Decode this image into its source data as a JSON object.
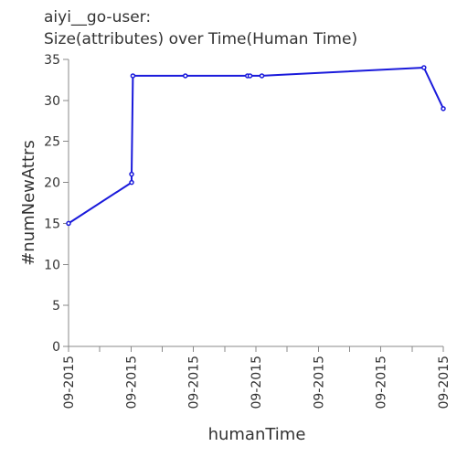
{
  "title": {
    "line1": "aiyi__go-user:",
    "line2": "Size(attributes) over Time(Human Time)"
  },
  "colors": {
    "series": "#1a1adb",
    "axis": "#888888",
    "text": "#333333"
  },
  "chart_data": {
    "type": "line",
    "title": "aiyi__go-user: Size(attributes) over Time(Human Time)",
    "xlabel": "humanTime",
    "ylabel": "#numNewAttrs",
    "ylim": [
      0,
      35
    ],
    "yticks": [
      0,
      5,
      10,
      15,
      20,
      25,
      30,
      35
    ],
    "xticks": [
      "09-2015",
      "09-2015",
      "09-2015",
      "09-2015",
      "09-2015",
      "09-2015",
      "09-2015",
      "09-2015",
      "09-2015",
      "09-2015",
      "09-2015",
      "09-2015",
      "09-2015"
    ],
    "grid": false,
    "legend": "none",
    "series": [
      {
        "x": [
          0,
          20.2,
          20.2,
          20.6,
          37.4,
          57.3,
          58.1,
          61.9,
          113.8,
          120.0
        ],
        "y": [
          15,
          20,
          21,
          33,
          33,
          33,
          33,
          33,
          34,
          29
        ]
      }
    ]
  }
}
